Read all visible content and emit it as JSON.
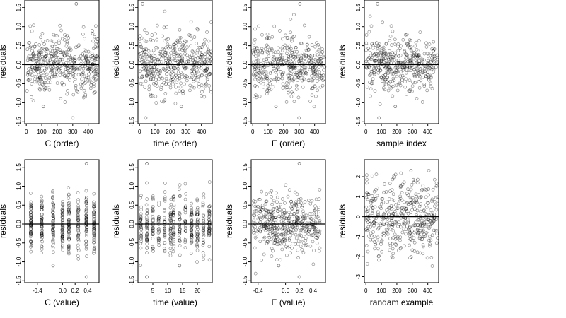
{
  "chart_data": [
    {
      "type": "scatter",
      "xlabel": "C (order)",
      "ylabel": "residuals",
      "xticks": [
        "0",
        "100",
        "200",
        "300",
        "400"
      ],
      "yticks": [
        "-1.5",
        "-1.0",
        "-0.5",
        "0.0",
        "0.5",
        "1.0",
        "1.5"
      ],
      "xlim": [
        -10,
        470
      ],
      "ylim": [
        -1.55,
        1.7
      ],
      "x_range": [
        1,
        465
      ],
      "y_spread": 0.38,
      "outliers": [
        {
          "x": 323,
          "y": 1.6
        },
        {
          "x": 110,
          "y": -1.1
        },
        {
          "x": 300,
          "y": -1.4
        }
      ],
      "hline": 0,
      "marker": "open-circle",
      "grid": false
    },
    {
      "type": "scatter",
      "xlabel": "time (order)",
      "ylabel": "residuals",
      "xticks": [
        "0",
        "100",
        "200",
        "300",
        "400"
      ],
      "yticks": [
        "-1.5",
        "-1.0",
        "-0.5",
        "0.0",
        "0.5",
        "1.0",
        "1.5"
      ],
      "xlim": [
        -10,
        470
      ],
      "ylim": [
        -1.55,
        1.7
      ],
      "x_range": [
        1,
        465
      ],
      "y_spread": 0.38,
      "outliers": [
        {
          "x": 20,
          "y": 1.6
        },
        {
          "x": 270,
          "y": -1.1
        },
        {
          "x": 40,
          "y": -1.4
        }
      ],
      "hline": 0,
      "marker": "open-circle",
      "grid": false
    },
    {
      "type": "scatter",
      "xlabel": "E (order)",
      "ylabel": "residuals",
      "xticks": [
        "0",
        "100",
        "200",
        "300",
        "400"
      ],
      "yticks": [
        "-1.5",
        "-1.0",
        "-0.5",
        "0.0",
        "0.5",
        "1.0",
        "1.5"
      ],
      "xlim": [
        -10,
        470
      ],
      "ylim": [
        -1.55,
        1.7
      ],
      "x_range": [
        1,
        465
      ],
      "y_spread": 0.38,
      "outliers": [
        {
          "x": 305,
          "y": 1.6
        },
        {
          "x": 150,
          "y": -1.1
        },
        {
          "x": 300,
          "y": -1.4
        }
      ],
      "hline": 0,
      "marker": "open-circle",
      "grid": false
    },
    {
      "type": "scatter",
      "xlabel": "sample index",
      "ylabel": "residuals",
      "xticks": [
        "0",
        "100",
        "200",
        "300",
        "400"
      ],
      "yticks": [
        "-1.5",
        "-1.0",
        "-0.5",
        "0.0",
        "0.5",
        "1.0",
        "1.5"
      ],
      "xlim": [
        -10,
        470
      ],
      "ylim": [
        -1.55,
        1.7
      ],
      "x_range": [
        1,
        465
      ],
      "y_spread": 0.38,
      "outliers": [
        {
          "x": 75,
          "y": 1.6
        },
        {
          "x": 190,
          "y": -1.1
        },
        {
          "x": 85,
          "y": -1.4
        }
      ],
      "hline": 0,
      "marker": "open-circle",
      "grid": false
    },
    {
      "type": "scatter",
      "xlabel": "C (value)",
      "ylabel": "residuals",
      "xticks": [
        "-0.4",
        "0.0",
        "0.2",
        "0.4"
      ],
      "xtick_values": [
        -0.4,
        0.0,
        0.2,
        0.4
      ],
      "yticks": [
        "-1.5",
        "-1.0",
        "-0.5",
        "0.0",
        "0.5",
        "1.0",
        "1.5"
      ],
      "xlim": [
        -0.6,
        0.58
      ],
      "ylim": [
        -1.55,
        1.7
      ],
      "x_levels": [
        -0.5,
        -0.33,
        -0.15,
        0.0,
        0.1,
        0.25,
        0.38,
        0.5
      ],
      "y_spread": 0.38,
      "outliers": [
        {
          "x": 0.38,
          "y": 1.6
        },
        {
          "x": -0.15,
          "y": -1.1
        },
        {
          "x": 0.38,
          "y": -1.4
        }
      ],
      "hline": 0,
      "marker": "open-circle",
      "grid": false
    },
    {
      "type": "scatter",
      "xlabel": "time (value)",
      "ylabel": "residuals",
      "xticks": [
        "5",
        "10",
        "15",
        "20"
      ],
      "xtick_values": [
        5,
        10,
        15,
        20
      ],
      "yticks": [
        "-1.5",
        "-1.0",
        "-0.5",
        "0.0",
        "0.5",
        "1.0",
        "1.5"
      ],
      "xlim": [
        0,
        25
      ],
      "ylim": [
        -1.55,
        1.7
      ],
      "x_levels": [
        1,
        3,
        5,
        7,
        9,
        11,
        12,
        14,
        16,
        18,
        20,
        22,
        24
      ],
      "y_spread": 0.38,
      "outliers": [
        {
          "x": 3,
          "y": 1.6
        },
        {
          "x": 14,
          "y": -1.1
        },
        {
          "x": 3,
          "y": -1.4
        }
      ],
      "hline": 0,
      "marker": "open-circle",
      "grid": false
    },
    {
      "type": "scatter",
      "xlabel": "E (value)",
      "ylabel": "residuals",
      "xticks": [
        "-0.4",
        "0.0",
        "0.2",
        "0.4"
      ],
      "xtick_values": [
        -0.4,
        0.0,
        0.2,
        0.4
      ],
      "yticks": [
        "-1.5",
        "-1.0",
        "-0.5",
        "0.0",
        "0.5",
        "1.0",
        "1.5"
      ],
      "xlim": [
        -0.5,
        0.58
      ],
      "ylim": [
        -1.55,
        1.7
      ],
      "x_range": [
        -0.47,
        0.5
      ],
      "y_spread": 0.38,
      "outliers": [
        {
          "x": 0.2,
          "y": 1.6
        },
        {
          "x": -0.1,
          "y": -1.1
        },
        {
          "x": 0.2,
          "y": -1.4
        }
      ],
      "hline": 0,
      "marker": "open-circle",
      "grid": false
    },
    {
      "type": "scatter",
      "xlabel": "randam example",
      "ylabel": "residuals",
      "xticks": [
        "0",
        "100",
        "200",
        "300",
        "400"
      ],
      "yticks": [
        "-3",
        "-2",
        "-1",
        "0",
        "1",
        "2"
      ],
      "xlim": [
        -10,
        470
      ],
      "ylim": [
        -3.3,
        2.85
      ],
      "x_range": [
        1,
        465
      ],
      "y_spread": 1.0,
      "outliers": [],
      "hline": 0,
      "marker": "open-circle",
      "grid": false
    }
  ]
}
